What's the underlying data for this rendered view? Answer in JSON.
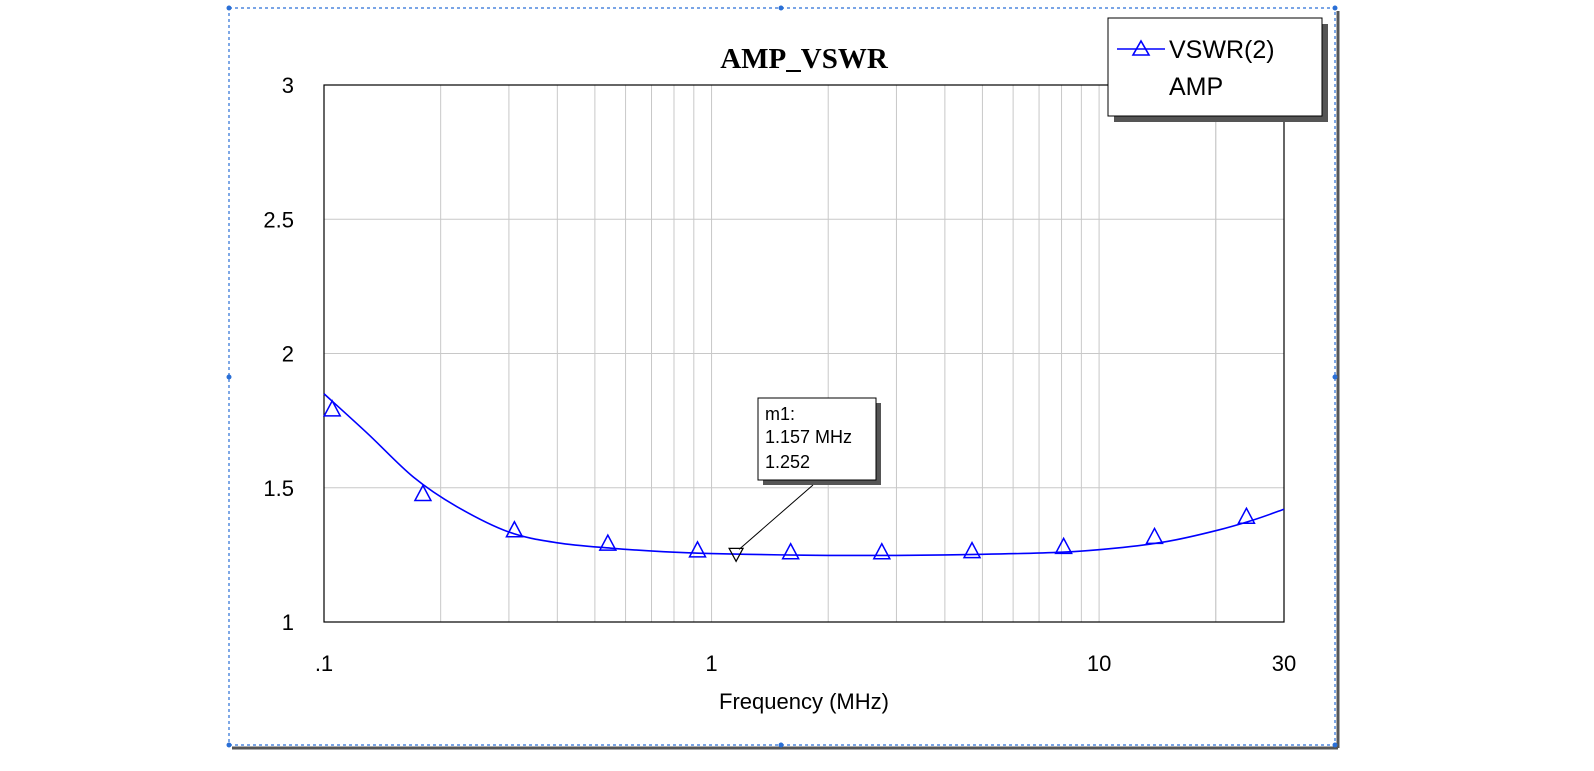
{
  "chart_data": {
    "type": "line",
    "title": "AMP_VSWR",
    "xlabel": "Frequency (MHz)",
    "ylabel": "",
    "x_scale": "log",
    "xlim": [
      0.1,
      30
    ],
    "ylim": [
      1,
      3
    ],
    "x_ticks": [
      {
        "value": 0.1,
        "label": ".1"
      },
      {
        "value": 1,
        "label": "1"
      },
      {
        "value": 10,
        "label": "10"
      },
      {
        "value": 30,
        "label": "30"
      }
    ],
    "y_ticks": [
      {
        "value": 1,
        "label": "1"
      },
      {
        "value": 1.5,
        "label": "1.5"
      },
      {
        "value": 2,
        "label": "2"
      },
      {
        "value": 2.5,
        "label": "2.5"
      },
      {
        "value": 3,
        "label": "3"
      }
    ],
    "grid": true,
    "legend_position": "top-right",
    "series": [
      {
        "name": "VSWR(2)",
        "name_line2": "AMP",
        "color": "#0000ff",
        "marker": "triangle",
        "x": [
          0.1,
          0.13,
          0.17,
          0.22,
          0.3,
          0.4,
          0.55,
          0.75,
          1.0,
          1.5,
          2.0,
          3.0,
          5.0,
          8.0,
          11.0,
          15.0,
          20.0,
          25.0,
          30.0
        ],
        "y": [
          1.85,
          1.7,
          1.54,
          1.43,
          1.335,
          1.295,
          1.275,
          1.262,
          1.255,
          1.25,
          1.248,
          1.248,
          1.252,
          1.26,
          1.275,
          1.3,
          1.34,
          1.38,
          1.42
        ],
        "marker_x": [
          0.105,
          0.18,
          0.31,
          0.54,
          0.92,
          1.6,
          2.75,
          4.7,
          8.1,
          13.9,
          24.0
        ],
        "marker_y": [
          1.79,
          1.475,
          1.34,
          1.29,
          1.265,
          1.258,
          1.258,
          1.262,
          1.278,
          1.315,
          1.39
        ]
      }
    ],
    "marker": {
      "name": "m1:",
      "freq_label": "1.157 MHz",
      "value_label": "1.252",
      "x": 1.157,
      "y": 1.252
    }
  }
}
